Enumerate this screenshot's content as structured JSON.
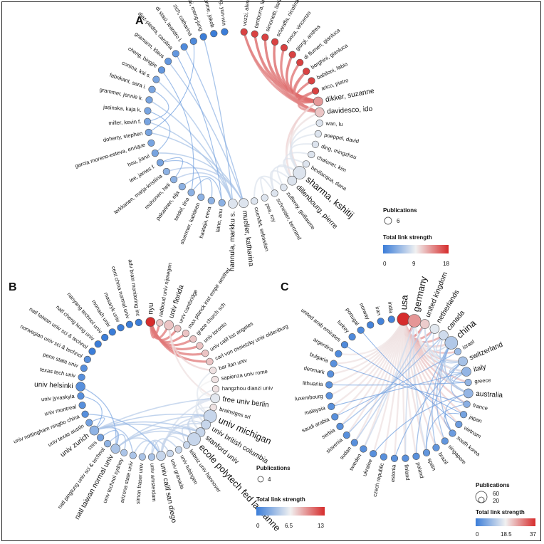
{
  "panels": [
    {
      "id": "A",
      "label": "A",
      "nodes": [
        {
          "name": "vozzi, alessia",
          "value": 17
        },
        {
          "name": "tamborra, luca",
          "value": 17
        },
        {
          "name": "simonetti, ilaria",
          "value": 17
        },
        {
          "name": "sclaraffa, nicolina",
          "value": 17
        },
        {
          "name": "ronca, vincenzo",
          "value": 17
        },
        {
          "name": "giorgi, andrea",
          "value": 17
        },
        {
          "name": "di flumeri, gianluca",
          "value": 17
        },
        {
          "name": "borghini, gianluca",
          "value": 17
        },
        {
          "name": "babiloni, fabio",
          "value": 17
        },
        {
          "name": "arico, pietro",
          "value": 17
        },
        {
          "name": "dikker, suzanne",
          "value": 13,
          "big": true
        },
        {
          "name": "davidesco, ido",
          "value": 11,
          "big": true
        },
        {
          "name": "wan, lu",
          "value": 8
        },
        {
          "name": "poeppel, david",
          "value": 8
        },
        {
          "name": "ding, mingzhou",
          "value": 8
        },
        {
          "name": "chaloner, kim",
          "value": 8
        },
        {
          "name": "bevilacqua, dana",
          "value": 8
        },
        {
          "name": "sharma, kshitij",
          "value": 8,
          "large": true
        },
        {
          "name": "dillenbourg, pierre",
          "value": 8,
          "big": true
        },
        {
          "name": "zufferey, guillaume",
          "value": 8
        },
        {
          "name": "schneider, bertrand",
          "value": 8
        },
        {
          "name": "pea, roy",
          "value": 8
        },
        {
          "name": "cuendet, sebastien",
          "value": 8
        },
        {
          "name": "mueller, katharina",
          "value": 8,
          "big": true
        },
        {
          "name": "hannula, markku s.",
          "value": 8,
          "big": true
        },
        {
          "name": "laine, anu",
          "value": 4
        },
        {
          "name": "haataja, eeva",
          "value": 4
        },
        {
          "name": "stuermer, kathleen",
          "value": 4
        },
        {
          "name": "seidel, tina",
          "value": 4
        },
        {
          "name": "pakarinen, eija",
          "value": 4
        },
        {
          "name": "muhonen, heli",
          "value": 4
        },
        {
          "name": "lerkkanen, marja-kristiina",
          "value": 4
        },
        {
          "name": "lee, james f.",
          "value": 3
        },
        {
          "name": "hou, jiarui",
          "value": 3
        },
        {
          "name": "garcia moreno-esteva, enrique",
          "value": 3
        },
        {
          "name": "doherty, stephen",
          "value": 3
        },
        {
          "name": "miller, kevin f.",
          "value": 3
        },
        {
          "name": "jasinska, kaja k.",
          "value": 3
        },
        {
          "name": "grammer, jennie k.",
          "value": 3
        },
        {
          "name": "fabrikant, sara i.",
          "value": 3
        },
        {
          "name": "cortina, kai s.",
          "value": 3
        },
        {
          "name": "cheng, bingjie",
          "value": 2
        },
        {
          "name": "gramann, klaus",
          "value": 2
        },
        {
          "name": "diaz-piedra, carolina",
          "value": 2
        },
        {
          "name": "di stasi, leandro l.",
          "value": 1
        },
        {
          "name": "zich, catharina",
          "value": 1
        },
        {
          "name": "tsai, meng-jung",
          "value": 0
        },
        {
          "name": "ohme, jakob",
          "value": 0
        },
        {
          "name": "huang, yun-win",
          "value": 0
        }
      ],
      "legend": {
        "size_title": "Publications",
        "size_value": "6",
        "strength_title": "Total link strength",
        "ticks": [
          "0",
          "9",
          "18"
        ],
        "max": 18
      }
    },
    {
      "id": "B",
      "label": "B",
      "nodes": [
        {
          "name": "nyu",
          "value": 13,
          "big": true
        },
        {
          "name": "radboud univ nijmegen",
          "value": 8
        },
        {
          "name": "univ florida",
          "value": 8,
          "big": true
        },
        {
          "name": "univ cambridge",
          "value": 8
        },
        {
          "name": "max planck inst empir aesthet",
          "value": 8
        },
        {
          "name": "grace church sch",
          "value": 8
        },
        {
          "name": "univ toronto",
          "value": 8
        },
        {
          "name": "univ calif los angeles",
          "value": 8
        },
        {
          "name": "carl von ossietzky univ oldenburg",
          "value": 8
        },
        {
          "name": "bar ilan univ",
          "value": 7
        },
        {
          "name": "sapienza univ rome",
          "value": 7
        },
        {
          "name": "hangzhou dianzi univ",
          "value": 7
        },
        {
          "name": "free univ berlin",
          "value": 6,
          "big": true
        },
        {
          "name": "brainsigns srl",
          "value": 7
        },
        {
          "name": "univ michigan",
          "value": 5,
          "large": true
        },
        {
          "name": "univ british columbia",
          "value": 5,
          "big": true
        },
        {
          "name": "stanford univ",
          "value": 5,
          "big": true
        },
        {
          "name": "ecole polytech fed lausanne",
          "value": 5,
          "large": true
        },
        {
          "name": "leibniz univ hannover",
          "value": 5
        },
        {
          "name": "univ tubingen",
          "value": 5
        },
        {
          "name": "univ granada",
          "value": 5
        },
        {
          "name": "univ calif san diego",
          "value": 5,
          "big": true
        },
        {
          "name": "univ amsterdam",
          "value": 4
        },
        {
          "name": "simon fraser univ",
          "value": 4
        },
        {
          "name": "arizona state univ",
          "value": 4
        },
        {
          "name": "univ technol sydney",
          "value": 4
        },
        {
          "name": "natl taiwan normal univ",
          "value": 4,
          "big": true
        },
        {
          "name": "natl pingtung univ sci & technol",
          "value": 3
        },
        {
          "name": "cnrs",
          "value": 2
        },
        {
          "name": "univ zurich",
          "value": 3,
          "big": true
        },
        {
          "name": "univ texas austin",
          "value": 2
        },
        {
          "name": "univ nottingham ningbo china",
          "value": 1
        },
        {
          "name": "univ montreal",
          "value": 1
        },
        {
          "name": "univ jyvaskyla",
          "value": 1
        },
        {
          "name": "univ helsinki",
          "value": 1,
          "big": true
        },
        {
          "name": "texas tech univ",
          "value": 1
        },
        {
          "name": "penn state univ",
          "value": 1
        },
        {
          "name": "norwegian univ sci & technol",
          "value": 1
        },
        {
          "name": "natl taiwan univ sci & technol",
          "value": 0
        },
        {
          "name": "natl cheng kung univ",
          "value": 0
        },
        {
          "name": "nanyang technol univ",
          "value": 0
        },
        {
          "name": "monash univ",
          "value": 0
        },
        {
          "name": "masaryk univ",
          "value": 0
        },
        {
          "name": "cent china normal univ",
          "value": 0
        },
        {
          "name": "adv brain monitoring inc",
          "value": 0
        }
      ],
      "legend": {
        "size_title": "Publications",
        "size_value": "4",
        "strength_title": "Total link strength",
        "ticks": [
          "0",
          "6.5",
          "13"
        ],
        "max": 13
      }
    },
    {
      "id": "C",
      "label": "C",
      "nodes": [
        {
          "name": "usa",
          "value": 37,
          "large": true
        },
        {
          "name": "germany",
          "value": 27,
          "large": true
        },
        {
          "name": "united kingdom",
          "value": 22,
          "big": true
        },
        {
          "name": "netherlands",
          "value": 17,
          "big": true
        },
        {
          "name": "canada",
          "value": 15,
          "big": true
        },
        {
          "name": "china",
          "value": 12,
          "large": true
        },
        {
          "name": "israel",
          "value": 10
        },
        {
          "name": "switzerland",
          "value": 11,
          "big": true
        },
        {
          "name": "italy",
          "value": 9,
          "big": true
        },
        {
          "name": "greece",
          "value": 9
        },
        {
          "name": "australia",
          "value": 9,
          "big": true
        },
        {
          "name": "france",
          "value": 8
        },
        {
          "name": "japan",
          "value": 6
        },
        {
          "name": "vietnam",
          "value": 5
        },
        {
          "name": "south korea",
          "value": 5
        },
        {
          "name": "singapore",
          "value": 4
        },
        {
          "name": "brazil",
          "value": 4
        },
        {
          "name": "spain",
          "value": 4
        },
        {
          "name": "poland",
          "value": 3
        },
        {
          "name": "finland",
          "value": 3
        },
        {
          "name": "estonia",
          "value": 3
        },
        {
          "name": "czech republic",
          "value": 3
        },
        {
          "name": "ukraine",
          "value": 3
        },
        {
          "name": "sweden",
          "value": 3
        },
        {
          "name": "sudan",
          "value": 3
        },
        {
          "name": "slovenia",
          "value": 3
        },
        {
          "name": "serbia",
          "value": 3
        },
        {
          "name": "saudi arabia",
          "value": 3
        },
        {
          "name": "malaysia",
          "value": 3
        },
        {
          "name": "luxembourg",
          "value": 3
        },
        {
          "name": "lithuania",
          "value": 3
        },
        {
          "name": "denmark",
          "value": 3
        },
        {
          "name": "bulgaria",
          "value": 3
        },
        {
          "name": "argentina",
          "value": 2
        },
        {
          "name": "united arab emirates",
          "value": 2
        },
        {
          "name": "turkey",
          "value": 2
        },
        {
          "name": "portugal",
          "value": 2
        },
        {
          "name": "norway",
          "value": 1
        },
        {
          "name": "iran",
          "value": 1
        },
        {
          "name": "india",
          "value": 1
        }
      ],
      "legend": {
        "size_title": "Publications",
        "size_values": [
          "60",
          "20"
        ],
        "strength_title": "Total link strength",
        "ticks": [
          "0",
          "18.5",
          "37"
        ],
        "max": 37
      }
    }
  ]
}
